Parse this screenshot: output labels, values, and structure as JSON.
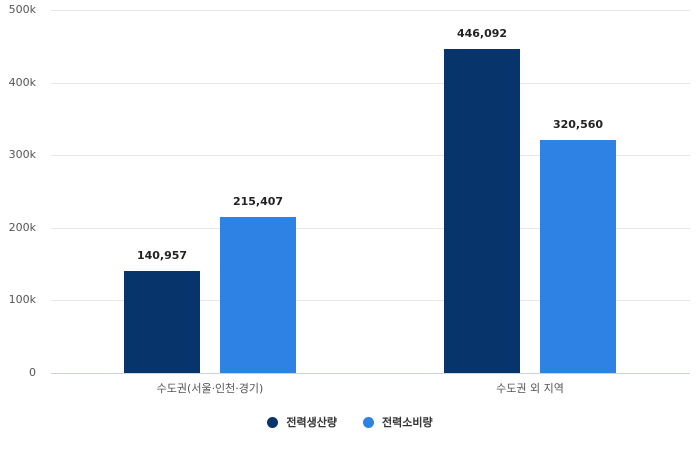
{
  "chart_data": {
    "type": "bar",
    "title": "",
    "xlabel": "",
    "ylabel": "",
    "categories": [
      "수도권(서울·인천·경기)",
      "수도권 외 지역"
    ],
    "series": [
      {
        "name": "전력생산량",
        "color": "#08346c",
        "values": [
          140957,
          446092
        ]
      },
      {
        "name": "전력소비량",
        "color": "#2e82e4",
        "values": [
          215407,
          320560
        ]
      }
    ],
    "value_labels": [
      [
        "140,957",
        "446,092"
      ],
      [
        "215,407",
        "320,560"
      ]
    ],
    "ylim": [
      0,
      500000
    ],
    "yticks": [
      0,
      100000,
      200000,
      300000,
      400000,
      500000
    ],
    "ytick_labels": [
      "0",
      "100k",
      "200k",
      "300k",
      "400k",
      "500k"
    ],
    "grid": true,
    "legend_position": "bottom"
  }
}
